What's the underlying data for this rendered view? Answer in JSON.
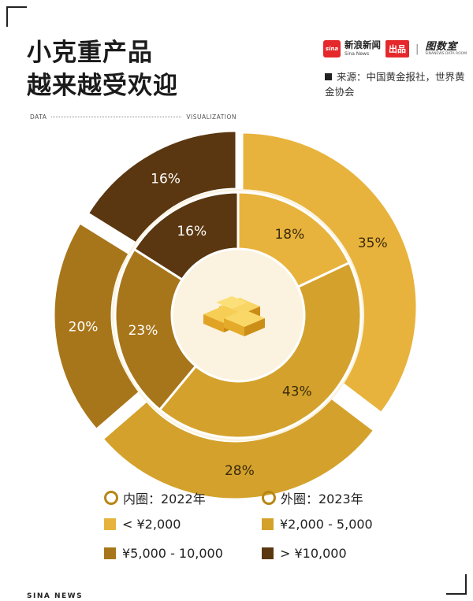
{
  "title": {
    "line1": "小克重产品",
    "line2": "越来越受欢迎"
  },
  "brand": {
    "sina_cn": "新浪新闻",
    "sina_en": "Sina News",
    "chupin": "出品",
    "tushuoshi_cn": "图数室",
    "tushuoshi_en": "SINANEWS DATA ROOM"
  },
  "source": "来源：中国黄金报社，世界黄金协会",
  "header_row": {
    "left": "DATA",
    "right": "VISUALIZATION"
  },
  "chart_data": {
    "type": "pie",
    "style": "double donut",
    "categories": [
      "< ¥2,000",
      "¥2,000 - 5,000",
      "¥5,000 - 10,000",
      "> ¥10,000"
    ],
    "colors": [
      "#e8b33c",
      "#d4a22c",
      "#a8761a",
      "#5a3710"
    ],
    "series": [
      {
        "name": "内圈：2022年",
        "ring": "inner",
        "values": [
          18,
          43,
          23,
          16
        ],
        "labels": [
          "18%",
          "43%",
          "23%",
          "16%"
        ]
      },
      {
        "name": "外圈：2023年",
        "ring": "outer",
        "values": [
          35,
          28,
          20,
          16
        ],
        "labels": [
          "35%",
          "28%",
          "20%",
          "16%"
        ]
      }
    ],
    "legend_position": "bottom"
  },
  "legend": {
    "inner_label": "内圈：2022年",
    "outer_label": "外圈：2023年",
    "items": [
      "< ¥2,000",
      "¥2,000 - 5,000",
      "¥5,000 - 10,000",
      "> ¥10,000"
    ]
  },
  "footer": "SINA NEWS"
}
